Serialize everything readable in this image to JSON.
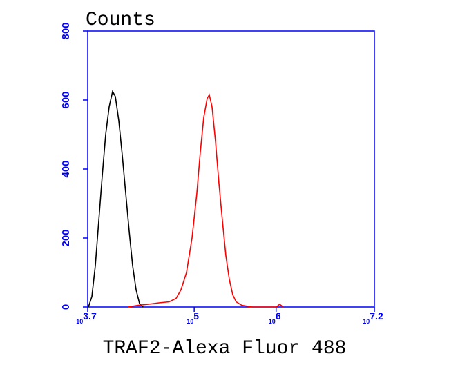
{
  "chart_data": {
    "type": "line",
    "title": "Counts",
    "x_label": "TRAF2-Alexa Fluor 488",
    "xscale": "log",
    "xlim": [
      5011.87,
      15848931.92
    ],
    "xticks": [
      {
        "value": 5011.87,
        "label": "10",
        "exponent": "3.7"
      },
      {
        "value": 100000,
        "label": "10",
        "exponent": "5"
      },
      {
        "value": 1000000,
        "label": "10",
        "exponent": "6"
      },
      {
        "value": 15848931.92,
        "label": "10",
        "exponent": "7.2"
      }
    ],
    "ylim": [
      0,
      800
    ],
    "yticks": [
      0,
      200,
      400,
      600,
      800
    ],
    "axis_color": "#0000ff",
    "series": [
      {
        "color": "#000000",
        "x": [
          5110,
          5630,
          6204,
          6837,
          7537,
          8303,
          9151,
          10081,
          10896,
          12006,
          13232,
          14578,
          16067,
          17707,
          19510,
          21497,
          23690
        ],
        "values": [
          0,
          30,
          120,
          250,
          380,
          500,
          580,
          625,
          610,
          540,
          440,
          330,
          220,
          120,
          50,
          10,
          0
        ]
      },
      {
        "color": "#ff0000",
        "x": [
          15453,
          20680,
          27670,
          37030,
          49550,
          60170,
          68900,
          80500,
          94010,
          107700,
          118700,
          130800,
          144100,
          152800,
          165100,
          181900,
          200400,
          220900,
          243400,
          268300,
          295600,
          325700,
          380500,
          509000,
          1004000,
          1107000,
          1219000
        ],
        "values": [
          0,
          5,
          8,
          12,
          15,
          25,
          50,
          100,
          200,
          330,
          450,
          550,
          605,
          615,
          580,
          480,
          360,
          250,
          150,
          80,
          35,
          15,
          5,
          0,
          0,
          8,
          0
        ]
      }
    ]
  }
}
